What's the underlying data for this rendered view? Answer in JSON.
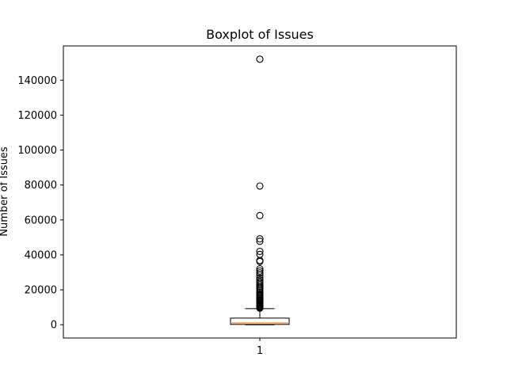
{
  "chart_data": {
    "type": "boxplot",
    "title": "Boxplot of Issues",
    "xlabel": "",
    "ylabel": "Number of Issues",
    "categories": [
      "1"
    ],
    "ylim": [
      -7600,
      159600
    ],
    "yticks": [
      0,
      20000,
      40000,
      60000,
      80000,
      100000,
      120000,
      140000
    ],
    "grid": false,
    "box": {
      "category": "1",
      "q1": 200,
      "median": 1000,
      "q3": 3800,
      "whisker_low": 0,
      "whisker_high": 9200,
      "outliers": [
        152000,
        79400,
        62500,
        49200,
        47800,
        42000,
        40300,
        36800,
        36200,
        32000,
        30800,
        29700,
        28500,
        26800,
        25600,
        24700,
        24000,
        23000,
        22000,
        21200,
        20400,
        19600,
        18800,
        18000,
        17300,
        16600,
        16000,
        15400,
        14800,
        14200,
        13600,
        13000,
        12500,
        12000,
        11500,
        11000,
        10600,
        10200,
        9800,
        9500
      ]
    },
    "colors": {
      "box": "#000000",
      "median": "#ff7f0e",
      "outlier": "#000000"
    }
  }
}
